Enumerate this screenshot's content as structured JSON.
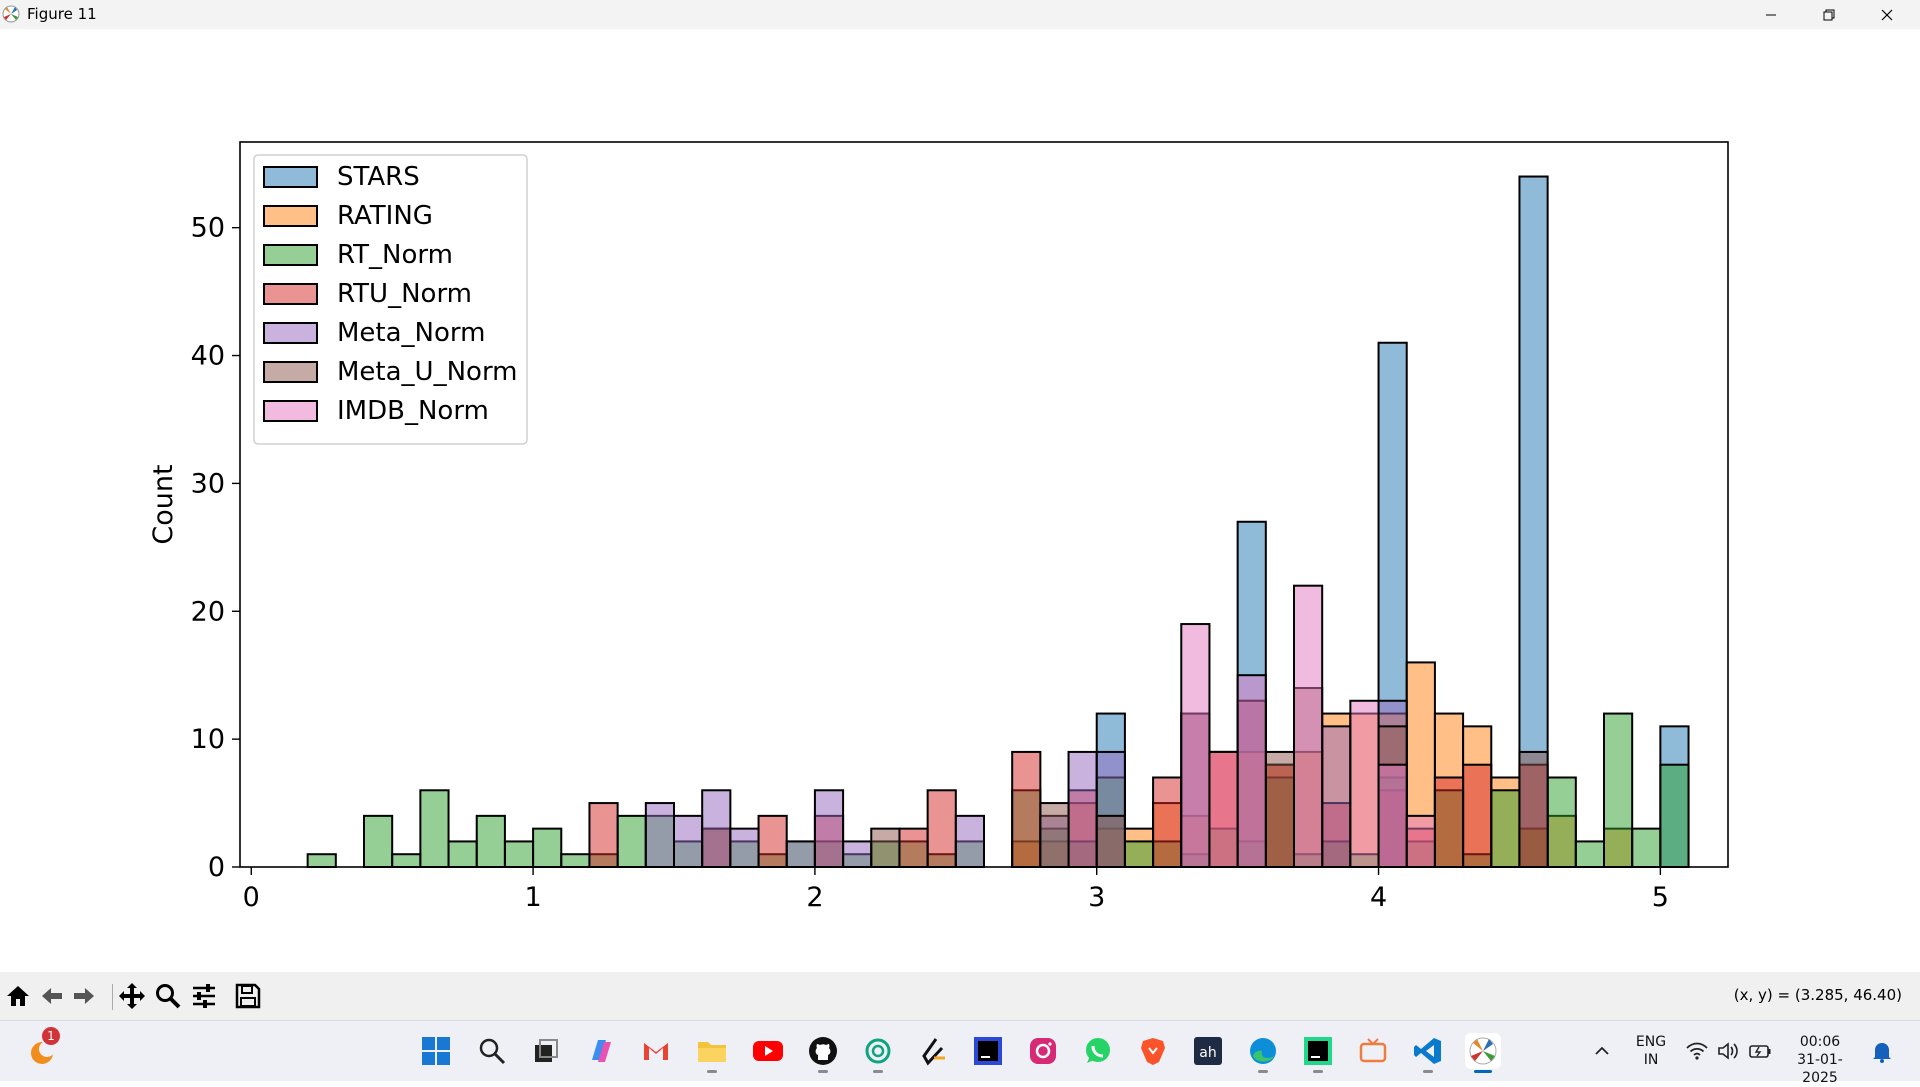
{
  "window": {
    "title": "Figure 11"
  },
  "legend": [
    "STARS",
    "RATING",
    "RT_Norm",
    "RTU_Norm",
    "Meta_Norm",
    "Meta_U_Norm",
    "IMDB_Norm"
  ],
  "chart_data": {
    "type": "bar",
    "histogram": true,
    "ylabel": "Count",
    "xlabel": "",
    "xlim": [
      -0.04,
      5.24
    ],
    "ylim": [
      0,
      56.7
    ],
    "xticks": [
      0,
      1,
      2,
      3,
      4,
      5
    ],
    "yticks": [
      0,
      10,
      20,
      30,
      40,
      50
    ],
    "legend_position": "top-left",
    "bin_width": 0.1,
    "colors": [
      "#1f77b4",
      "#ff7f0e",
      "#2ca02c",
      "#d62728",
      "#9467bd",
      "#8c564b",
      "#e377c2"
    ],
    "series": [
      {
        "name": "STARS",
        "bins": [
          [
            3.0,
            12
          ],
          [
            3.5,
            27
          ],
          [
            4.0,
            41
          ],
          [
            4.5,
            54
          ],
          [
            5.0,
            11
          ]
        ]
      },
      {
        "name": "RATING",
        "bins": [
          [
            2.7,
            2
          ],
          [
            2.8,
            2
          ],
          [
            2.9,
            5
          ],
          [
            3.0,
            3
          ],
          [
            3.1,
            3
          ],
          [
            3.2,
            5
          ],
          [
            3.3,
            4
          ],
          [
            3.4,
            9
          ],
          [
            3.5,
            9
          ],
          [
            3.6,
            8
          ],
          [
            3.7,
            9
          ],
          [
            3.8,
            12
          ],
          [
            3.9,
            12
          ],
          [
            4.0,
            12
          ],
          [
            4.1,
            16
          ],
          [
            4.2,
            12
          ],
          [
            4.3,
            11
          ],
          [
            4.4,
            7
          ],
          [
            4.5,
            3
          ],
          [
            4.6,
            4
          ],
          [
            4.8,
            3
          ]
        ]
      },
      {
        "name": "RT_Norm",
        "bins": [
          [
            0.2,
            1
          ],
          [
            0.4,
            4
          ],
          [
            0.5,
            1
          ],
          [
            0.6,
            6
          ],
          [
            0.7,
            2
          ],
          [
            0.8,
            4
          ],
          [
            0.9,
            2
          ],
          [
            1.0,
            3
          ],
          [
            1.1,
            1
          ],
          [
            1.2,
            1
          ],
          [
            1.3,
            4
          ],
          [
            1.4,
            4
          ],
          [
            1.5,
            2
          ],
          [
            1.6,
            3
          ],
          [
            1.7,
            2
          ],
          [
            1.8,
            1
          ],
          [
            1.9,
            2
          ],
          [
            2.0,
            2
          ],
          [
            2.1,
            1
          ],
          [
            2.2,
            2
          ],
          [
            2.3,
            2
          ],
          [
            2.4,
            1
          ],
          [
            2.5,
            2
          ],
          [
            2.7,
            6
          ],
          [
            2.8,
            3
          ],
          [
            2.9,
            2
          ],
          [
            3.0,
            7
          ],
          [
            3.1,
            2
          ],
          [
            3.2,
            2
          ],
          [
            3.3,
            1
          ],
          [
            3.4,
            3
          ],
          [
            3.5,
            2
          ],
          [
            3.6,
            7
          ],
          [
            3.7,
            1
          ],
          [
            3.8,
            2
          ],
          [
            3.9,
            1
          ],
          [
            4.0,
            7
          ],
          [
            4.1,
            2
          ],
          [
            4.2,
            6
          ],
          [
            4.3,
            1
          ],
          [
            4.4,
            6
          ],
          [
            4.5,
            3
          ],
          [
            4.6,
            7
          ],
          [
            4.7,
            2
          ],
          [
            4.8,
            12
          ],
          [
            4.9,
            3
          ],
          [
            5.0,
            8
          ]
        ]
      },
      {
        "name": "RTU_Norm",
        "bins": [
          [
            1.2,
            5
          ],
          [
            1.6,
            3
          ],
          [
            1.8,
            4
          ],
          [
            2.0,
            4
          ],
          [
            2.3,
            3
          ],
          [
            2.4,
            6
          ],
          [
            2.7,
            9
          ],
          [
            2.9,
            6
          ],
          [
            3.2,
            7
          ],
          [
            3.4,
            9
          ],
          [
            3.6,
            8
          ],
          [
            3.8,
            5
          ],
          [
            4.0,
            6
          ],
          [
            4.1,
            3
          ],
          [
            4.2,
            7
          ],
          [
            4.3,
            8
          ],
          [
            4.5,
            8
          ]
        ]
      },
      {
        "name": "Meta_Norm",
        "bins": [
          [
            1.4,
            5
          ],
          [
            1.5,
            4
          ],
          [
            1.6,
            6
          ],
          [
            1.7,
            3
          ],
          [
            1.9,
            2
          ],
          [
            2.0,
            6
          ],
          [
            2.1,
            2
          ],
          [
            2.5,
            4
          ],
          [
            2.8,
            4
          ],
          [
            2.9,
            9
          ],
          [
            3.0,
            9
          ],
          [
            3.3,
            12
          ],
          [
            3.5,
            13
          ],
          [
            3.8,
            11
          ],
          [
            4.0,
            13
          ]
        ]
      },
      {
        "name": "Meta_U_Norm",
        "bins": [
          [
            2.2,
            3
          ],
          [
            2.8,
            5
          ],
          [
            3.0,
            4
          ],
          [
            3.3,
            12
          ],
          [
            3.5,
            13
          ],
          [
            3.6,
            9
          ],
          [
            3.7,
            14
          ],
          [
            4.0,
            11
          ],
          [
            4.5,
            9
          ]
        ]
      },
      {
        "name": "IMDB_Norm",
        "bins": [
          [
            3.3,
            19
          ],
          [
            3.4,
            9
          ],
          [
            3.5,
            15
          ],
          [
            3.7,
            22
          ],
          [
            3.9,
            13
          ],
          [
            4.0,
            8
          ],
          [
            4.1,
            4
          ]
        ]
      }
    ]
  },
  "toolbar": {
    "coords": "(x, y) = (3.285, 46.40)"
  },
  "taskbar": {
    "notification_badge": "1",
    "lang_top": "ENG",
    "lang_bottom": "IN",
    "time": "00:06",
    "date": "31-01-2025"
  }
}
